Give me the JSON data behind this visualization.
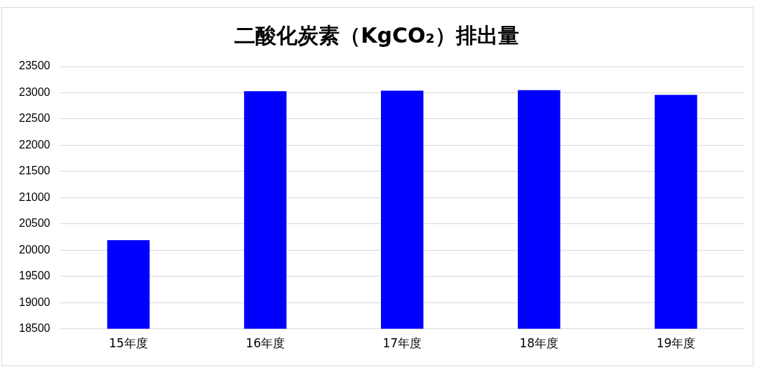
{
  "chart_data": {
    "type": "bar",
    "title": "二酸化炭素（KgCO₂）排出量",
    "categories": [
      "15年度",
      "16年度",
      "17年度",
      "18年度",
      "19年度"
    ],
    "values": [
      20190,
      23030,
      23040,
      23050,
      22960
    ],
    "color": "#0000ff",
    "ylim": [
      18500,
      23500
    ],
    "yticks": [
      18500,
      19000,
      19500,
      20000,
      20500,
      21000,
      21500,
      22000,
      22500,
      23000,
      23500
    ],
    "grid": "y",
    "legend": false
  }
}
